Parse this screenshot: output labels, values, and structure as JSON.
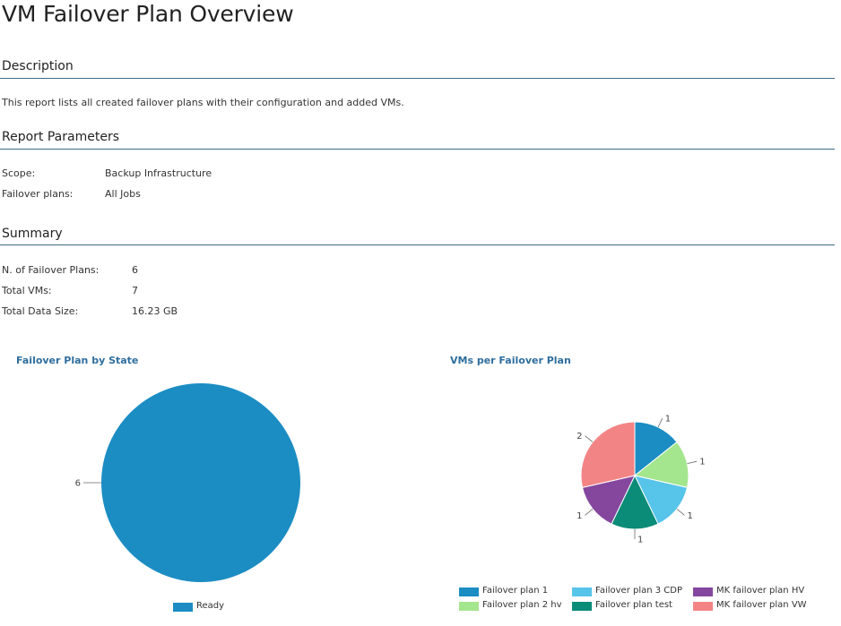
{
  "title": "VM Failover Plan Overview",
  "sections": {
    "description": {
      "heading": "Description",
      "text": "This report lists all created failover plans with their configuration and added VMs."
    },
    "parameters": {
      "heading": "Report Parameters",
      "rows": [
        {
          "label": "Scope:",
          "value": "Backup Infrastructure"
        },
        {
          "label": "Failover plans:",
          "value": "All Jobs"
        }
      ]
    },
    "summary": {
      "heading": "Summary",
      "rows": [
        {
          "label": "N. of Failover Plans:",
          "value": "6"
        },
        {
          "label": "Total VMs:",
          "value": "7"
        },
        {
          "label": "Total Data Size:",
          "value": "16.23 GB"
        }
      ]
    }
  },
  "chart_data": [
    {
      "type": "pie",
      "title": "Failover Plan by State",
      "slices": [
        {
          "label": "Ready",
          "value": 6,
          "color": "#1b8dc3"
        }
      ],
      "legend_position": "bottom"
    },
    {
      "type": "pie",
      "title": "VMs per Failover Plan",
      "slices": [
        {
          "label": "Failover plan 1",
          "value": 1,
          "color": "#1b8dc3"
        },
        {
          "label": "Failover plan 2 hv",
          "value": 1,
          "color": "#a4e68d"
        },
        {
          "label": "Failover plan 3 CDP",
          "value": 1,
          "color": "#57c4ea"
        },
        {
          "label": "Failover plan test",
          "value": 1,
          "color": "#0b8c78"
        },
        {
          "label": "MK failover plan HV",
          "value": 1,
          "color": "#85479e"
        },
        {
          "label": "MK failover plan VW",
          "value": 2,
          "color": "#f38486"
        }
      ],
      "legend_position": "bottom"
    }
  ]
}
